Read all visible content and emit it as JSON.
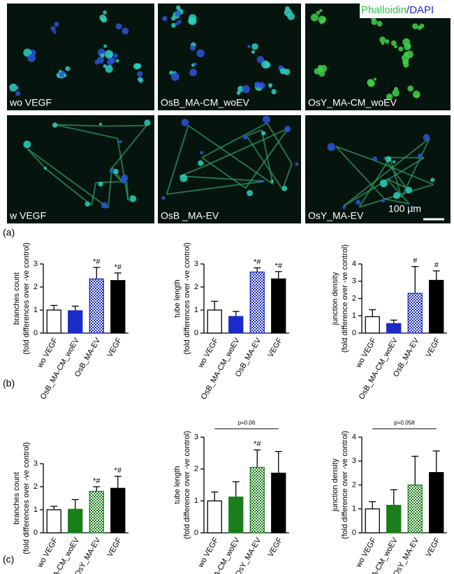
{
  "images": {
    "legend": {
      "stain1": "Phalloidin",
      "separator": "/",
      "stain2": "DAPI"
    },
    "labels": [
      "wo VEGF",
      "OsB_MA-CM_woEV",
      "OsY_MA-CM_woEV",
      "w VEGF",
      "OsB _MA-EV",
      "OsY_MA-EV"
    ],
    "scale_bar": "100 µm"
  },
  "panel_labels": [
    "(a)",
    "(b)",
    "(c)"
  ],
  "chart_data": [
    {
      "type": "bar",
      "ylabel": [
        "branches count",
        "(fold differences over -ve control)"
      ],
      "categories": [
        "wo VEGF",
        "OsB_MA-CM_woEV",
        "OsB_MA-EV",
        "VEGF"
      ],
      "values": [
        1.0,
        0.97,
        2.35,
        2.28
      ],
      "errors": [
        0.2,
        0.2,
        0.5,
        0.33
      ],
      "colors": [
        "#ffffff",
        "#1b2bc8",
        "#1b2bc8",
        "#000000"
      ],
      "hatched": [
        false,
        false,
        true,
        false
      ],
      "annotations": [
        null,
        null,
        "*#",
        "*#"
      ],
      "ylim": [
        0,
        3
      ],
      "yticks": [
        0,
        1,
        2,
        3
      ]
    },
    {
      "type": "bar",
      "ylabel": [
        "tube length",
        "(fold differences over -ve control)"
      ],
      "categories": [
        "wo VEGF",
        "OsB_MA-CM_woEV",
        "OsB_MA-EV",
        "VEGF"
      ],
      "values": [
        1.0,
        0.72,
        2.65,
        2.35
      ],
      "errors": [
        0.38,
        0.22,
        0.18,
        0.32
      ],
      "colors": [
        "#ffffff",
        "#1b2bc8",
        "#1b2bc8",
        "#000000"
      ],
      "hatched": [
        false,
        false,
        true,
        false
      ],
      "annotations": [
        null,
        null,
        "*#",
        "*#"
      ],
      "ylim": [
        0,
        3
      ],
      "yticks": [
        0,
        1,
        2,
        3
      ]
    },
    {
      "type": "bar",
      "ylabel": [
        "junction density",
        "(fold difference over -ve control)"
      ],
      "categories": [
        "wo VEGF",
        "OsB_MA-CM_woEV",
        "OsB_MA-EV",
        "VEGF"
      ],
      "values": [
        0.95,
        0.55,
        2.3,
        3.05
      ],
      "errors": [
        0.4,
        0.2,
        1.55,
        0.55
      ],
      "colors": [
        "#ffffff",
        "#1b2bc8",
        "#1b2bc8",
        "#000000"
      ],
      "hatched": [
        false,
        false,
        true,
        false
      ],
      "annotations": [
        null,
        null,
        "#",
        "#"
      ],
      "ylim": [
        0,
        4
      ],
      "yticks": [
        0,
        1,
        2,
        3,
        4
      ]
    },
    {
      "type": "bar",
      "ylabel": [
        "branches count",
        "(fold differences over -ve control)"
      ],
      "categories": [
        "wo VEGF",
        "OsY_MA-CM_woEV",
        "OsY_MA-EV",
        "VEGF"
      ],
      "values": [
        1.0,
        1.02,
        1.8,
        1.93
      ],
      "errors": [
        0.15,
        0.42,
        0.2,
        0.52
      ],
      "colors": [
        "#ffffff",
        "#1a7f1a",
        "#1a7f1a",
        "#000000"
      ],
      "hatched": [
        false,
        false,
        true,
        false
      ],
      "annotations": [
        null,
        null,
        "*#",
        "*#"
      ],
      "ylim": [
        0,
        3
      ],
      "yticks": [
        0,
        1,
        2,
        3
      ]
    },
    {
      "type": "bar",
      "ylabel": [
        "tube length",
        "(fold difference over -ve control)"
      ],
      "categories": [
        "wo VEGF",
        "OsY_MA-CM_woEV",
        "OsY_MA-EV",
        "VEGF"
      ],
      "values": [
        1.0,
        1.12,
        2.05,
        1.87
      ],
      "errors": [
        0.28,
        0.48,
        0.55,
        0.68
      ],
      "colors": [
        "#ffffff",
        "#1a7f1a",
        "#1a7f1a",
        "#000000"
      ],
      "hatched": [
        false,
        false,
        true,
        false
      ],
      "annotations": [
        null,
        null,
        "*#",
        null
      ],
      "bracket": "p=0.06",
      "ylim": [
        0,
        3
      ],
      "yticks": [
        0,
        1,
        2,
        3
      ]
    },
    {
      "type": "bar",
      "ylabel": [
        "junction density",
        "(fold difference over -ve control)"
      ],
      "categories": [
        "wo VEGF",
        "OsY_MA-CM_woEV",
        "OsY_MA-EV",
        "VEGF"
      ],
      "values": [
        1.0,
        1.15,
        2.0,
        2.52
      ],
      "errors": [
        0.3,
        0.65,
        1.2,
        0.9
      ],
      "colors": [
        "#ffffff",
        "#1a7f1a",
        "#1a7f1a",
        "#000000"
      ],
      "hatched": [
        false,
        false,
        true,
        false
      ],
      "annotations": [
        null,
        null,
        null,
        null
      ],
      "bracket": "p=0.058",
      "ylim": [
        0,
        4
      ],
      "yticks": [
        0,
        1,
        2,
        3,
        4
      ]
    }
  ]
}
